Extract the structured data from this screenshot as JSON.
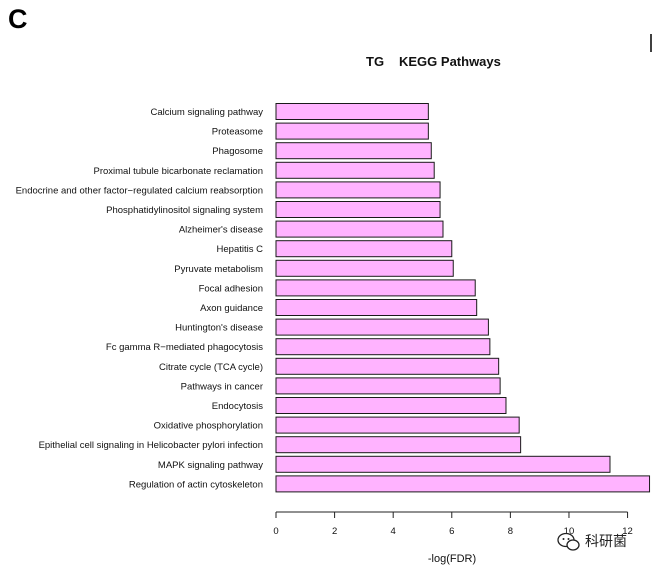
{
  "panel_label": "C",
  "watermark": {
    "text": "科研菌",
    "icon": "wechat-icon"
  },
  "chart_data": {
    "type": "bar",
    "orientation": "horizontal",
    "title_prefix": "TG",
    "title": "KEGG Pathways",
    "xlabel": "-log(FDR)",
    "ylabel": "",
    "xlim": [
      0,
      12.8
    ],
    "xticks": [
      0,
      2,
      4,
      6,
      8,
      10,
      12
    ],
    "grid": false,
    "legend": "none",
    "bar_color": "#FFB3FF",
    "bar_edge_color": "#1a1a1a",
    "categories": [
      "Calcium signaling pathway",
      "Proteasome",
      "Phagosome",
      "Proximal tubule bicarbonate reclamation",
      "Endocrine and other factor−regulated calcium reabsorption",
      "Phosphatidylinositol signaling system",
      "Alzheimer's disease",
      "Hepatitis C",
      "Pyruvate metabolism",
      "Focal adhesion",
      "Axon guidance",
      "Huntington's disease",
      "Fc gamma R−mediated phagocytosis",
      "Citrate cycle (TCA cycle)",
      "Pathways in cancer",
      "Endocytosis",
      "Oxidative phosphorylation",
      "Epithelial cell signaling in Helicobacter pylori infection",
      "MAPK signaling pathway",
      "Regulation of actin cytoskeleton"
    ],
    "values": [
      5.2,
      5.2,
      5.3,
      5.4,
      5.6,
      5.6,
      5.7,
      6.0,
      6.05,
      6.8,
      6.85,
      7.25,
      7.3,
      7.6,
      7.65,
      7.85,
      8.3,
      8.35,
      11.4,
      12.75
    ]
  }
}
